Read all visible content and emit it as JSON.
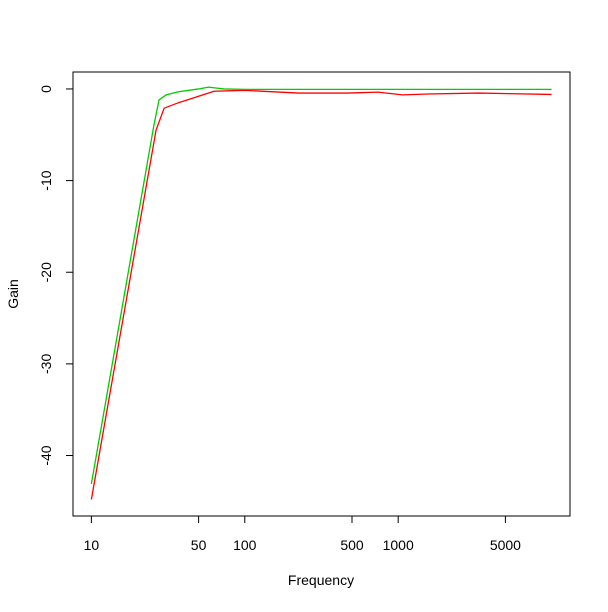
{
  "chart_data": {
    "type": "line",
    "x_label": "Frequency",
    "y_label": "Gain",
    "log_x": true,
    "xlim": [
      7.59,
      13183
    ],
    "ylim": [
      -46.6,
      1.85
    ],
    "xticks": [
      10,
      50,
      100,
      500,
      1000,
      5000
    ],
    "yticks": [
      0,
      -10,
      -20,
      -30,
      -40
    ],
    "series": [
      {
        "name": "red",
        "color": "#ff0000",
        "x": [
          10,
          26.4,
          29.8,
          37,
          50,
          63,
          100,
          224,
          470,
          740,
          1070,
          1560,
          3330,
          10000
        ],
        "values": [
          -44.8,
          -4.5,
          -2.1,
          -1.5,
          -0.8,
          -0.25,
          -0.15,
          -0.45,
          -0.45,
          -0.35,
          -0.65,
          -0.55,
          -0.45,
          -0.6
        ]
      },
      {
        "name": "green",
        "color": "#00cc00",
        "x": [
          10,
          25.6,
          27.6,
          30.7,
          37,
          50,
          58,
          73,
          100,
          1000,
          10000
        ],
        "values": [
          -43.1,
          -3.9,
          -1.2,
          -0.65,
          -0.3,
          0,
          0.2,
          0,
          -0.05,
          -0.05,
          -0.05
        ]
      }
    ]
  }
}
